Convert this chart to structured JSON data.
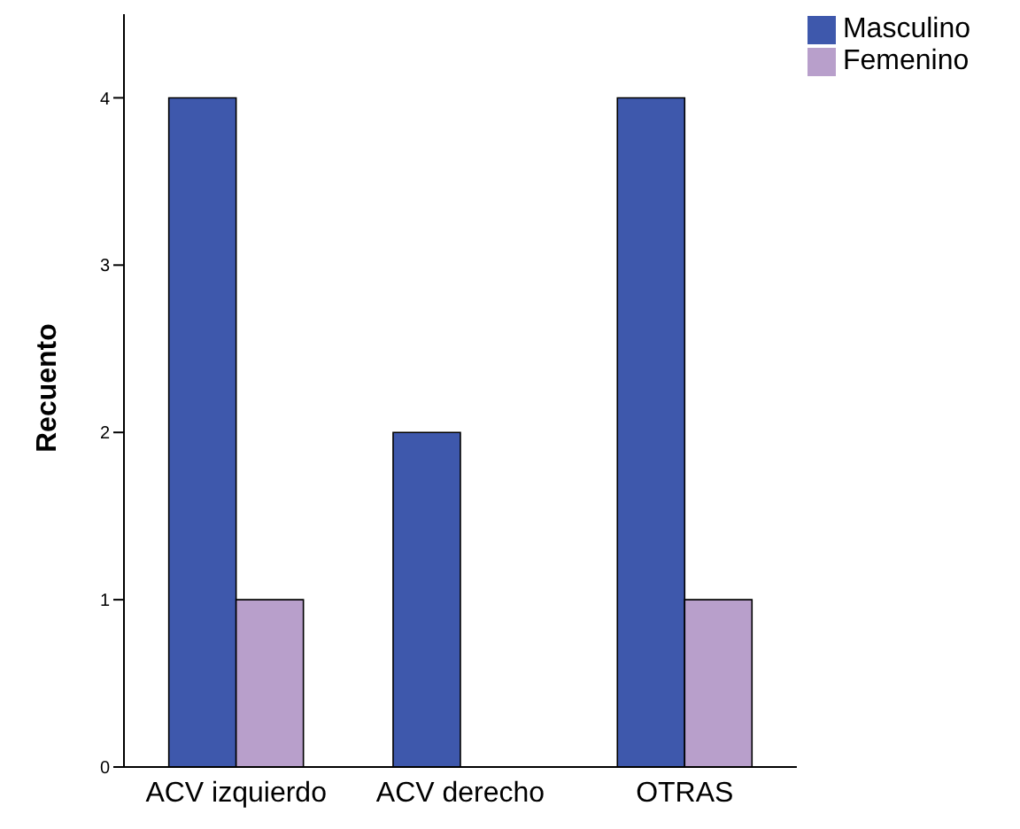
{
  "chart_data": {
    "type": "bar",
    "ylabel": "Recuento",
    "categories": [
      "ACV izquierdo",
      "ACV derecho",
      "OTRAS"
    ],
    "series": [
      {
        "name": "Masculino",
        "color": "#3e58ac",
        "values": [
          4,
          2,
          4
        ]
      },
      {
        "name": "Femenino",
        "color": "#b89fcb",
        "values": [
          1,
          0,
          1
        ]
      }
    ],
    "ylim": [
      0,
      4.5
    ],
    "yticks": [
      0,
      1,
      2,
      3,
      4
    ],
    "grid": false,
    "legend": "top right"
  }
}
